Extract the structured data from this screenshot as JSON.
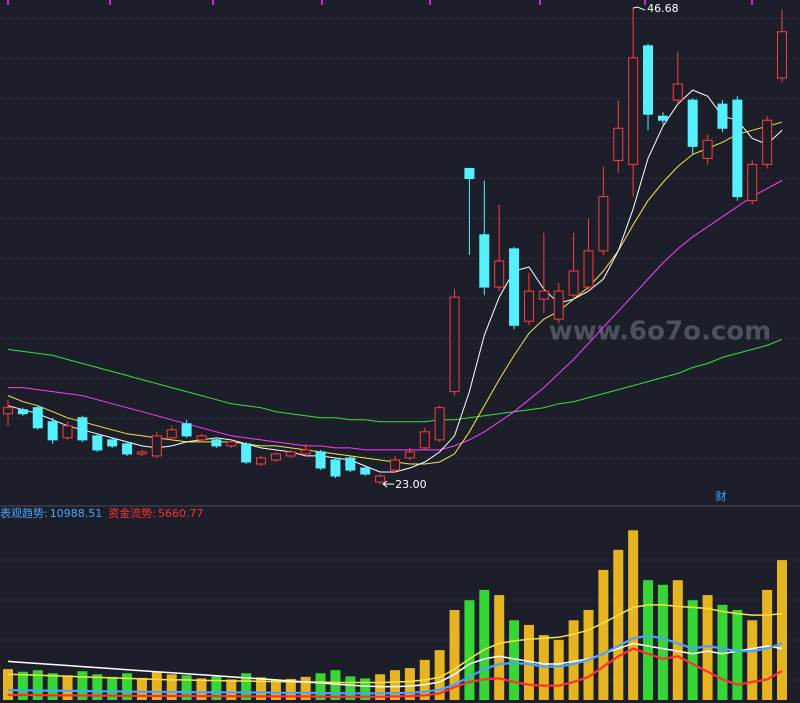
{
  "chart_data": {
    "type": "candlestick",
    "open": [
      26.5,
      26.7,
      26.8,
      26.1,
      25.3,
      26.3,
      25.4,
      25.2,
      25.0,
      24.5,
      24.4,
      25.3,
      26.0,
      25.2,
      25.2,
      24.9,
      25.0,
      24.0,
      24.2,
      24.4,
      24.5,
      24.6,
      24.2,
      24.3,
      23.8,
      23.1,
      23.7,
      24.3,
      24.8,
      25.2,
      27.6,
      38.7,
      35.4,
      32.8,
      34.7,
      31.1,
      32.2,
      31.2,
      32.4,
      32.8,
      34.6,
      39.1,
      38.9,
      44.8,
      41.3,
      42.1,
      42.1,
      39.2,
      41.9,
      42.1,
      37.1,
      38.9,
      43.2
    ],
    "close": [
      26.8,
      26.5,
      25.8,
      25.2,
      25.9,
      25.2,
      24.7,
      24.9,
      24.5,
      24.6,
      25.4,
      25.7,
      25.4,
      25.4,
      24.9,
      25.1,
      24.1,
      24.3,
      24.5,
      24.6,
      24.7,
      23.8,
      23.4,
      23.7,
      23.5,
      23.4,
      24.2,
      24.6,
      25.6,
      26.8,
      32.3,
      38.2,
      32.8,
      34.1,
      30.9,
      32.6,
      32.6,
      32.6,
      33.6,
      34.6,
      37.3,
      40.7,
      44.2,
      41.4,
      41.1,
      42.9,
      39.8,
      40.1,
      40.7,
      37.3,
      38.9,
      41.1,
      45.5
    ],
    "high": [
      27.2,
      26.8,
      26.9,
      26.3,
      26.1,
      26.4,
      25.5,
      25.3,
      25.1,
      24.7,
      25.6,
      25.9,
      26.2,
      25.5,
      25.3,
      25.2,
      25.1,
      24.4,
      24.6,
      24.7,
      25.0,
      24.7,
      24.3,
      24.4,
      23.9,
      23.5,
      24.4,
      24.8,
      25.8,
      26.9,
      32.7,
      38.7,
      38.1,
      36.9,
      34.8,
      33.5,
      35.5,
      33.0,
      35.5,
      36.2,
      38.8,
      42.1,
      46.68,
      44.9,
      41.5,
      44.5,
      42.2,
      40.4,
      42.1,
      42.3,
      39.1,
      41.3,
      46.6
    ],
    "low": [
      25.9,
      26.4,
      25.7,
      25.0,
      25.2,
      25.1,
      24.6,
      24.8,
      24.4,
      24.4,
      24.3,
      25.2,
      25.3,
      25.1,
      24.8,
      24.8,
      24.0,
      23.9,
      24.1,
      24.3,
      24.4,
      23.7,
      23.3,
      23.6,
      23.4,
      23.0,
      23.6,
      24.2,
      24.7,
      25.1,
      27.4,
      34.4,
      32.4,
      32.6,
      30.7,
      30.9,
      31.5,
      31.0,
      32.2,
      32.6,
      34.4,
      38.5,
      37.3,
      40.6,
      40.9,
      41.9,
      39.4,
      38.9,
      40.5,
      37.1,
      36.9,
      38.7,
      43.0
    ],
    "up_color": "#ff3c3c",
    "down_color": "#54f0ff",
    "ylim": [
      21.96,
      47.08
    ],
    "low_label": {
      "value": 23,
      "label": "23.00"
    },
    "moving_averages": [
      {
        "color": "#ffffff",
        "values": [
          26.9,
          26.7,
          26.5,
          26.2,
          25.9,
          25.7,
          25.5,
          25.3,
          25.1,
          24.9,
          24.8,
          24.9,
          25.1,
          25.2,
          25.3,
          25.2,
          25.0,
          24.8,
          24.7,
          24.6,
          24.4,
          24.4,
          24.3,
          24.2,
          23.9,
          23.6,
          23.6,
          23.8,
          24.1,
          24.6,
          25.4,
          27.6,
          30.4,
          32.3,
          33.6,
          33.8,
          32.7,
          32.0,
          32.2,
          32.6,
          33.2,
          34.6,
          36.7,
          39.2,
          40.8,
          41.9,
          42.6,
          42.3,
          41.3,
          41.1,
          40.2,
          39.9,
          40.6
        ]
      },
      {
        "color": "#f5e642",
        "values": [
          27.4,
          27.1,
          26.9,
          26.6,
          26.3,
          26.1,
          25.9,
          25.7,
          25.5,
          25.4,
          25.3,
          25.2,
          25.1,
          25.1,
          25.1,
          25.1,
          25.0,
          24.9,
          24.9,
          24.8,
          24.7,
          24.6,
          24.5,
          24.4,
          24.3,
          24.2,
          24.1,
          24.0,
          24.0,
          24.1,
          24.5,
          25.6,
          26.9,
          28.2,
          29.4,
          30.5,
          31.2,
          31.6,
          32.2,
          32.8,
          33.6,
          34.6,
          35.9,
          37.1,
          38.0,
          38.8,
          39.4,
          39.7,
          40.0,
          40.4,
          40.6,
          40.8,
          41.0
        ]
      },
      {
        "color": "#ff3cff",
        "values": [
          27.8,
          27.8,
          27.7,
          27.6,
          27.5,
          27.4,
          27.2,
          27.0,
          26.8,
          26.6,
          26.4,
          26.2,
          26.0,
          25.8,
          25.6,
          25.4,
          25.3,
          25.2,
          25.1,
          25.0,
          24.9,
          24.9,
          24.8,
          24.8,
          24.7,
          24.7,
          24.7,
          24.7,
          24.7,
          24.7,
          24.9,
          25.2,
          25.6,
          26.1,
          26.6,
          27.2,
          27.8,
          28.5,
          29.2,
          30.0,
          30.8,
          31.6,
          32.4,
          33.2,
          34.0,
          34.7,
          35.3,
          35.8,
          36.3,
          36.8,
          37.3,
          37.7,
          38.1
        ]
      },
      {
        "color": "#3cdc3c",
        "values": [
          29.7,
          29.6,
          29.5,
          29.4,
          29.2,
          29.0,
          28.8,
          28.6,
          28.4,
          28.2,
          28.0,
          27.8,
          27.6,
          27.4,
          27.2,
          27.0,
          26.9,
          26.8,
          26.6,
          26.5,
          26.4,
          26.3,
          26.3,
          26.2,
          26.2,
          26.1,
          26.1,
          26.1,
          26.1,
          26.2,
          26.2,
          26.3,
          26.4,
          26.5,
          26.6,
          26.7,
          26.8,
          27.0,
          27.1,
          27.3,
          27.5,
          27.7,
          27.9,
          28.1,
          28.3,
          28.5,
          28.8,
          29.0,
          29.3,
          29.5,
          29.7,
          29.9,
          30.2
        ]
      }
    ],
    "marker": "财",
    "watermark": "www.6o7o.com",
    "lower": {
      "ylim": [
        0,
        35000
      ],
      "volume": [
        6000,
        5500,
        5800,
        5200,
        4800,
        5600,
        5000,
        4500,
        5200,
        4300,
        5500,
        5000,
        4800,
        4200,
        4600,
        4000,
        5200,
        4400,
        3900,
        4100,
        4500,
        5200,
        5800,
        4600,
        4200,
        5000,
        5800,
        6200,
        7800,
        9700,
        17500,
        19400,
        21400,
        20400,
        15500,
        14600,
        12600,
        11700,
        15500,
        17500,
        25300,
        29200,
        33000,
        23300,
        22400,
        23300,
        19400,
        20400,
        18500,
        17500,
        15500,
        21400,
        27200
      ],
      "volume_up_color": "#e6b422",
      "volume_down_color": "#36d636",
      "series": [
        {
          "name": "表观趋势:",
          "color": "#4aa3ff",
          "values": [
            1900,
            1900,
            1850,
            1800,
            1800,
            1750,
            1700,
            1700,
            1650,
            1600,
            1600,
            1550,
            1550,
            1500,
            1500,
            1500,
            1450,
            1450,
            1400,
            1400,
            1400,
            1350,
            1350,
            1300,
            1300,
            1300,
            1350,
            1400,
            1600,
            2000,
            3000,
            4500,
            6000,
            7000,
            7200,
            7000,
            6500,
            6500,
            7000,
            7800,
            9000,
            10500,
            12000,
            12500,
            12000,
            11000,
            10000,
            10500,
            10000,
            9500,
            9500,
            10000,
            10988.51
          ]
        },
        {
          "name": "资金流势:",
          "color": "#ff3030",
          "values": [
            1000,
            1000,
            950,
            900,
            900,
            900,
            850,
            850,
            800,
            800,
            800,
            800,
            800,
            750,
            750,
            750,
            700,
            700,
            700,
            700,
            700,
            650,
            650,
            650,
            650,
            650,
            700,
            750,
            900,
            1300,
            2500,
            3500,
            4000,
            4200,
            3500,
            3000,
            2800,
            2800,
            3500,
            4500,
            6500,
            8500,
            10000,
            9000,
            8000,
            8500,
            7000,
            5500,
            4000,
            3000,
            3500,
            4000,
            5660.77
          ]
        },
        {
          "color": "#f5e642",
          "values": [
            5000,
            4900,
            4800,
            4700,
            4600,
            4500,
            4400,
            4300,
            4200,
            4100,
            4000,
            3900,
            3900,
            3800,
            3800,
            3700,
            3700,
            3600,
            3600,
            3500,
            3500,
            3500,
            3400,
            3400,
            3400,
            3400,
            3500,
            3600,
            3900,
            4400,
            6000,
            8000,
            9800,
            11000,
            11500,
            11800,
            12000,
            12200,
            12800,
            13600,
            15000,
            16500,
            18000,
            18500,
            18500,
            18200,
            18000,
            17800,
            17200,
            16800,
            16500,
            16500,
            16800
          ]
        },
        {
          "color": "#ffffff",
          "values": [
            7500,
            7300,
            7100,
            6900,
            6700,
            6500,
            6300,
            6100,
            5900,
            5700,
            5500,
            5300,
            5100,
            4900,
            4700,
            4500,
            4300,
            4100,
            3900,
            3700,
            3500,
            3300,
            3100,
            2900,
            2700,
            2600,
            2600,
            2700,
            3000,
            3500,
            5000,
            7000,
            8000,
            8500,
            8000,
            7500,
            7000,
            7000,
            7500,
            8000,
            9000,
            10000,
            11000,
            10500,
            10000,
            9500,
            9000,
            9500,
            9000,
            9500,
            10000,
            10500,
            10000
          ]
        }
      ]
    }
  }
}
